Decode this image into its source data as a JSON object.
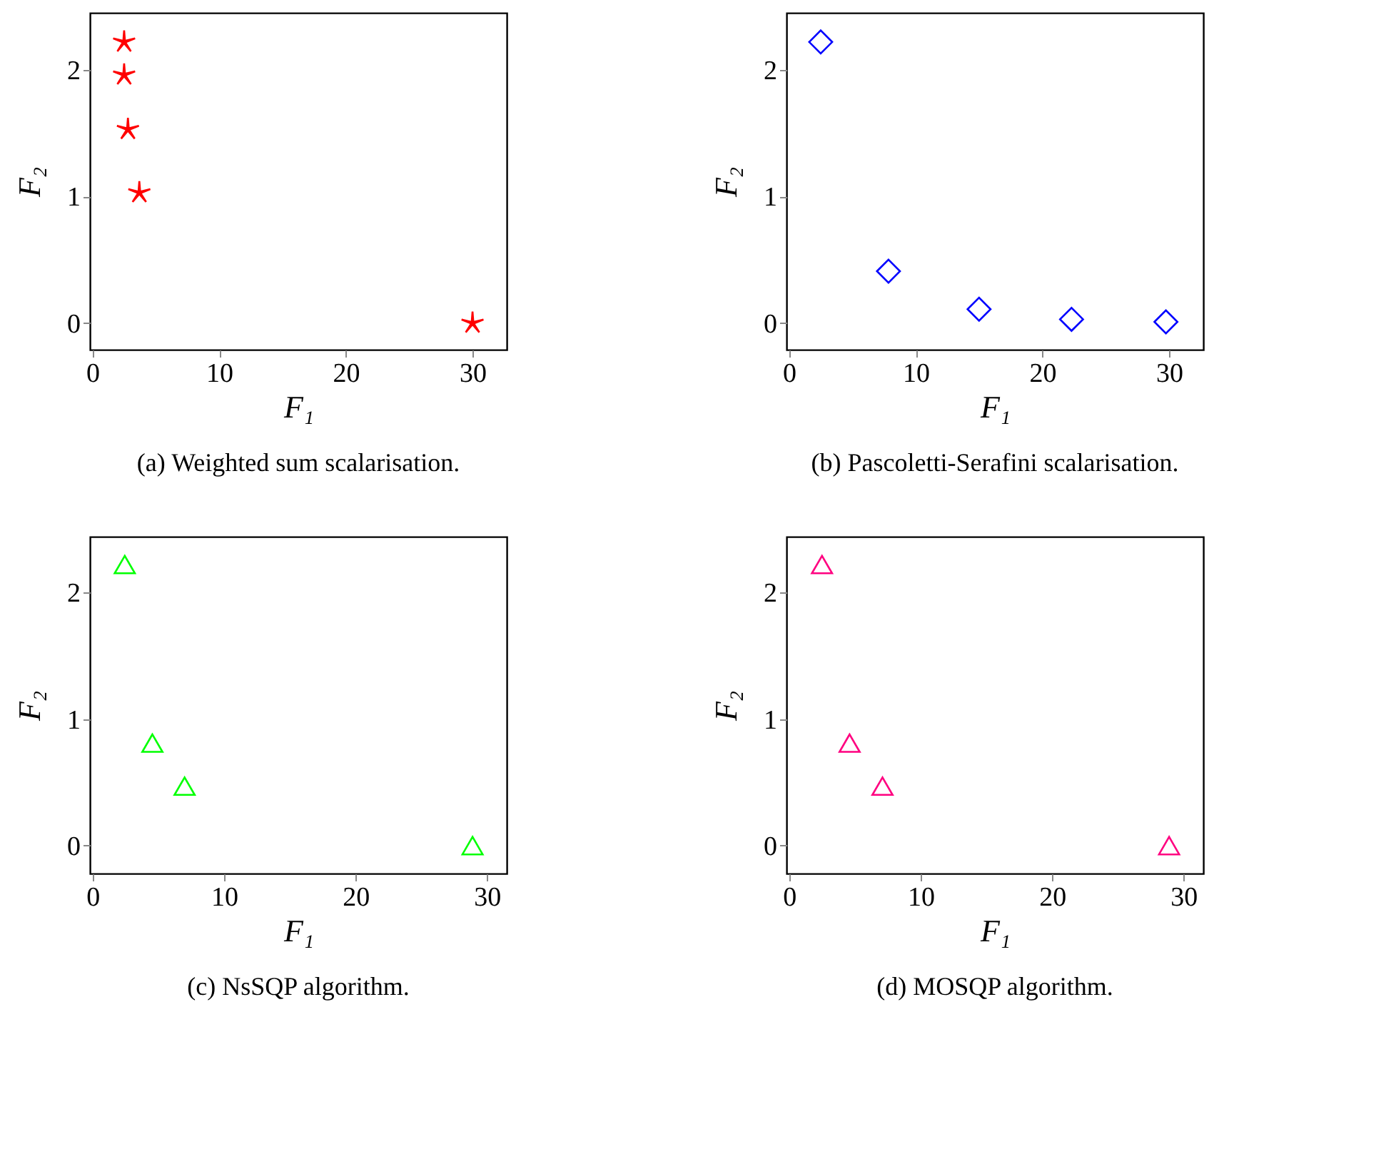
{
  "chart_data": [
    {
      "type": "scatter",
      "xlabel": "F₁",
      "ylabel": "F₂",
      "annotations": [
        "(a) Weighted sum scalarisation."
      ],
      "series": [
        {
          "color": "#ff0000",
          "x": [
            2.5,
            2.5,
            2.8,
            3.7,
            30
          ],
          "values": [
            2.22,
            1.96,
            1.53,
            1.03,
            0.0
          ]
        }
      ],
      "marker": "star",
      "xlim": [
        -0.2,
        32.7
      ],
      "ylim": [
        -0.21,
        2.45
      ],
      "xticks": [
        0,
        10,
        20,
        30
      ],
      "yticks": [
        0,
        1,
        2
      ],
      "grid": false
    },
    {
      "type": "scatter",
      "xlabel": "F₁",
      "ylabel": "F₂",
      "annotations": [
        "(b) Pascoletti-Serafini scalarisation."
      ],
      "series": [
        {
          "color": "#0000ff",
          "x": [
            2.5,
            7.85,
            15.0,
            22.3,
            29.75
          ],
          "values": [
            2.22,
            0.41,
            0.11,
            0.03,
            0.01
          ]
        }
      ],
      "marker": "diamond",
      "xlim": [
        -0.2,
        32.7
      ],
      "ylim": [
        -0.21,
        2.45
      ],
      "xticks": [
        0,
        10,
        20,
        30
      ],
      "yticks": [
        0,
        1,
        2
      ],
      "grid": false
    },
    {
      "type": "scatter",
      "xlabel": "F₁",
      "ylabel": "F₂",
      "annotations": [
        "(c) NsSQP algorithm."
      ],
      "series": [
        {
          "color": "#00ff00",
          "x": [
            2.45,
            4.55,
            7.0,
            28.9
          ],
          "values": [
            2.22,
            0.81,
            0.47,
            0.0
          ]
        }
      ],
      "marker": "triangle",
      "xlim": [
        -0.2,
        31.5
      ],
      "ylim": [
        -0.22,
        2.44
      ],
      "xticks": [
        0,
        10,
        20,
        30
      ],
      "yticks": [
        0,
        1,
        2
      ],
      "grid": false
    },
    {
      "type": "scatter",
      "xlabel": "F₁",
      "ylabel": "F₂",
      "annotations": [
        "(d) MOSQP algorithm."
      ],
      "series": [
        {
          "color": "#ff0080",
          "x": [
            2.5,
            4.6,
            7.1,
            28.9
          ],
          "values": [
            2.22,
            0.81,
            0.47,
            0.0
          ]
        }
      ],
      "marker": "triangle",
      "xlim": [
        -0.2,
        31.5
      ],
      "ylim": [
        -0.22,
        2.44
      ],
      "xticks": [
        0,
        10,
        20,
        30
      ],
      "yticks": [
        0,
        1,
        2
      ],
      "grid": false
    }
  ]
}
